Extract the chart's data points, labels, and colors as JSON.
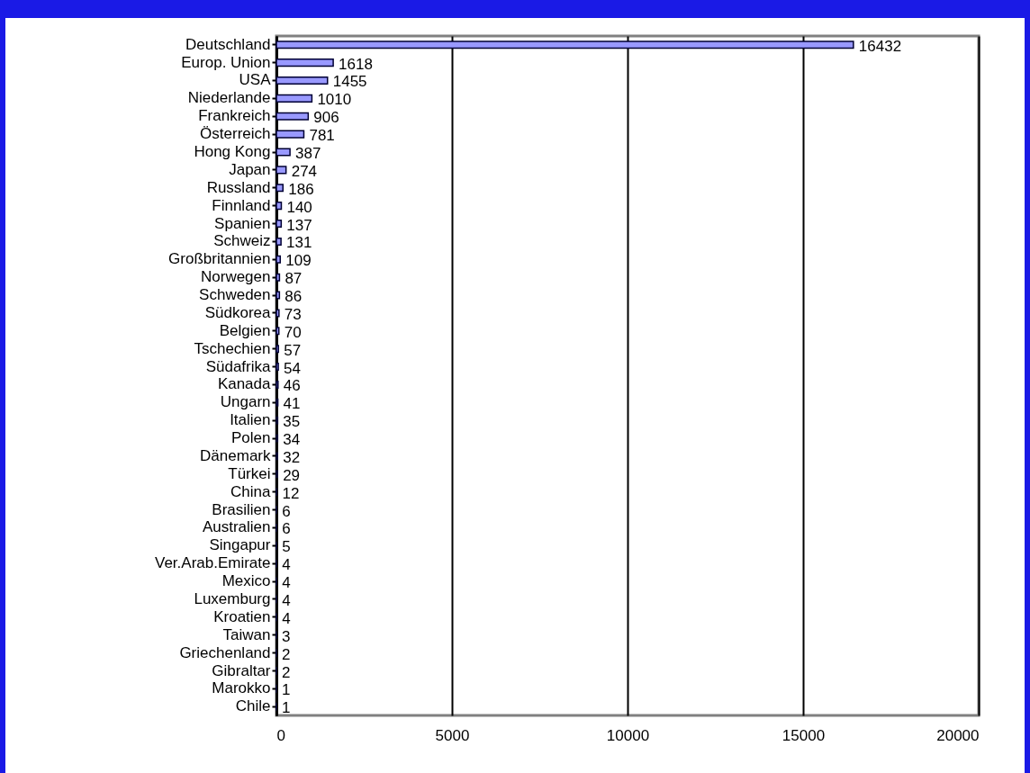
{
  "chart_data": {
    "type": "bar",
    "orientation": "horizontal",
    "categories": [
      "Deutschland",
      "Europ. Union",
      "USA",
      "Niederlande",
      "Frankreich",
      "Österreich",
      "Hong Kong",
      "Japan",
      "Russland",
      "Finnland",
      "Spanien",
      "Schweiz",
      "Großbritannien",
      "Norwegen",
      "Schweden",
      "Südkorea",
      "Belgien",
      "Tschechien",
      "Südafrika",
      "Kanada",
      "Ungarn",
      "Italien",
      "Polen",
      "Dänemark",
      "Türkei",
      "China",
      "Brasilien",
      "Australien",
      "Singapur",
      "Ver.Arab.Emirate",
      "Mexico",
      "Luxemburg",
      "Kroatien",
      "Taiwan",
      "Griechenland",
      "Gibraltar",
      "Marokko",
      "Chile"
    ],
    "values": [
      16432,
      1618,
      1455,
      1010,
      906,
      781,
      387,
      274,
      186,
      140,
      137,
      131,
      109,
      87,
      86,
      73,
      70,
      57,
      54,
      46,
      41,
      35,
      34,
      32,
      29,
      12,
      6,
      6,
      5,
      4,
      4,
      4,
      4,
      3,
      2,
      2,
      1,
      1
    ],
    "color": "#9999ff",
    "xlim": [
      0,
      20000
    ],
    "xticks": [
      0,
      5000,
      10000,
      15000,
      20000
    ],
    "grid": "x",
    "data_labels": true
  }
}
